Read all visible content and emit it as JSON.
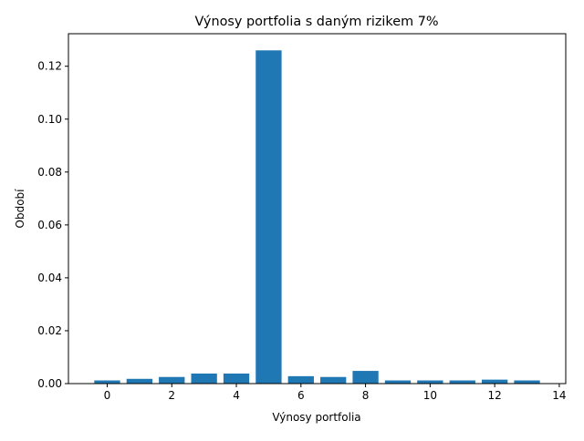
{
  "chart_data": {
    "type": "bar",
    "title": "Výnosy portfolia s daným rizikem 7%",
    "xlabel": "Výnosy portfolia",
    "ylabel": "Období",
    "x": [
      0,
      1,
      2,
      3,
      4,
      5,
      6,
      7,
      8,
      9,
      10,
      11,
      12,
      13
    ],
    "values": [
      0.0012,
      0.0018,
      0.0025,
      0.0038,
      0.0038,
      0.126,
      0.0028,
      0.0025,
      0.0048,
      0.0012,
      0.0012,
      0.0012,
      0.0015,
      0.0012
    ],
    "xlim": [
      -1.2,
      14.2
    ],
    "ylim": [
      0,
      0.1323
    ],
    "xticks": [
      0,
      2,
      4,
      6,
      8,
      10,
      12,
      14
    ],
    "yticks": [
      0.0,
      0.02,
      0.04,
      0.06,
      0.08,
      0.1,
      0.12
    ],
    "ytick_labels": [
      "0.00",
      "0.02",
      "0.04",
      "0.06",
      "0.08",
      "0.10",
      "0.12"
    ],
    "grid": false,
    "bar_color": "#1f77b4"
  }
}
